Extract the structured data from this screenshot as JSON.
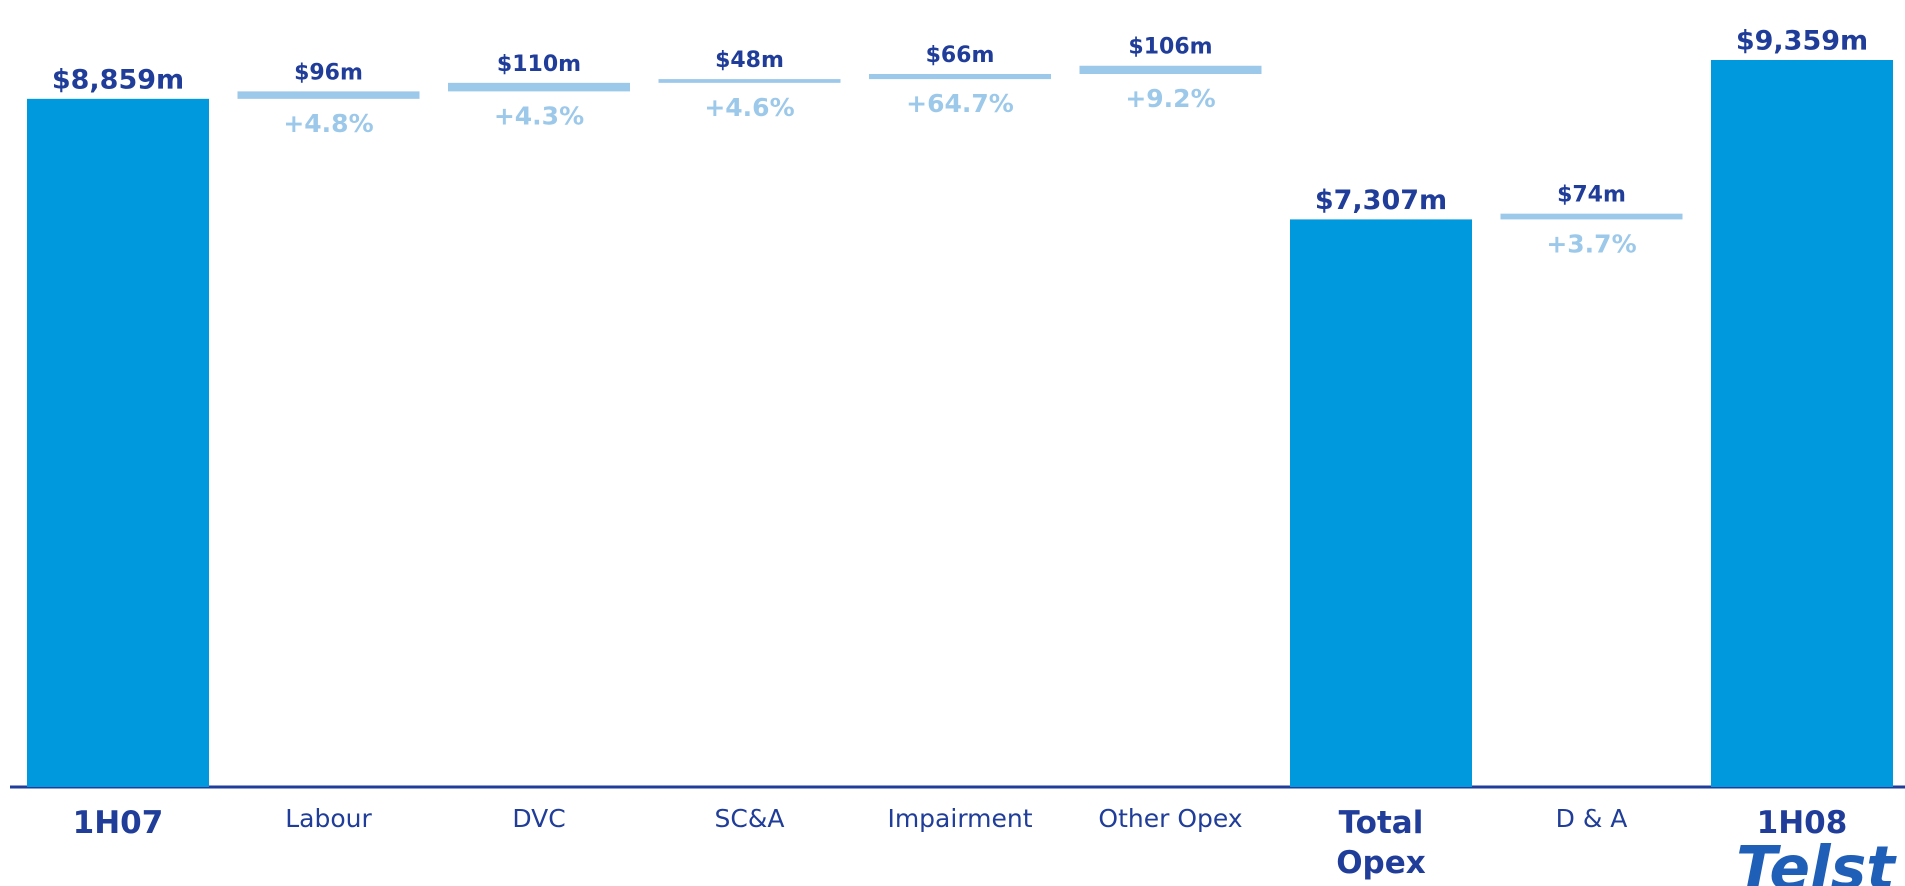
{
  "chart_data": {
    "type": "waterfall",
    "categories": [
      "1H07",
      "Labour",
      "DVC",
      "SC&A",
      "Impairment",
      "Other Opex",
      "Total Opex",
      "D & A",
      "1H08"
    ],
    "kinds": [
      "total",
      "increase",
      "increase",
      "increase",
      "increase",
      "increase",
      "total",
      "increase",
      "total"
    ],
    "values": [
      8859,
      96,
      110,
      48,
      66,
      106,
      7307,
      74,
      9359
    ],
    "value_labels": [
      "$8,859m",
      "$96m",
      "$110m",
      "$48m",
      "$66m",
      "$106m",
      "$7,307m",
      "$74m",
      "$9,359m"
    ],
    "change_labels": [
      null,
      "+4.8%",
      "+4.3%",
      "+4.6%",
      "+64.7%",
      "+9.2%",
      null,
      "+3.7%",
      null
    ],
    "colors": {
      "total": "#0099dd",
      "increase": "#9cc8ea"
    },
    "logo": "Telst"
  }
}
